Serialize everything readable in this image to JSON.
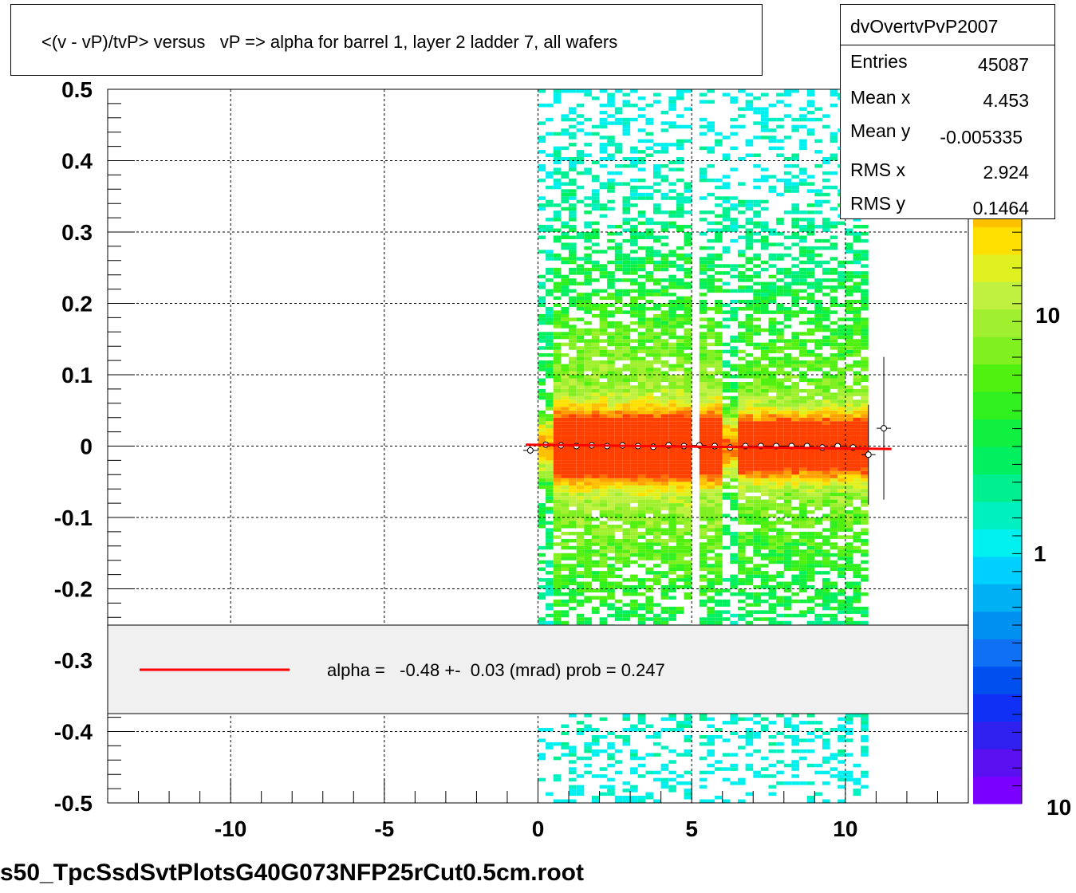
{
  "title": "<(v - vP)/tvP> versus   vP => alpha for barrel 1, layer 2 ladder 7, all wafers",
  "stats": {
    "name": "dvOvertvPvP2007",
    "rows": [
      {
        "label": "Entries",
        "value": "45087"
      },
      {
        "label": "Mean x",
        "value": "4.453"
      },
      {
        "label": "Mean y",
        "value": "-0.005335"
      },
      {
        "label": "RMS x",
        "value": "2.924"
      },
      {
        "label": "RMS y",
        "value": "0.1464"
      }
    ]
  },
  "legend": {
    "text": "alpha =   -0.48 +-  0.03 (mrad) prob = 0.247",
    "line_color": "#ff0000"
  },
  "palette": {
    "labels": [
      "10",
      "1",
      "10"
    ],
    "colors": [
      "#7a00ff",
      "#5a10f0",
      "#3020f0",
      "#1030f5",
      "#0050f0",
      "#1070f5",
      "#0090f0",
      "#00b0f5",
      "#00d0ff",
      "#00f0f0",
      "#00f0c0",
      "#00f090",
      "#00f060",
      "#10f040",
      "#30f020",
      "#50f010",
      "#80f020",
      "#a0f030",
      "#c0f040",
      "#e0f020",
      "#ffe000",
      "#ffc000",
      "#ffa000",
      "#ff7000",
      "#ff4000",
      "#ff0000"
    ]
  },
  "chart_data": {
    "type": "heatmap",
    "xlim": [
      -14,
      14
    ],
    "ylim": [
      -0.5,
      0.5
    ],
    "x_ticks": [
      -10,
      -5,
      0,
      5,
      10
    ],
    "x_tick_labels": [
      "-10",
      "-5",
      "0",
      "5",
      "10"
    ],
    "y_ticks": [
      -0.5,
      -0.4,
      -0.3,
      -0.2,
      -0.1,
      0,
      0.1,
      0.2,
      0.3,
      0.4,
      0.5
    ],
    "y_tick_labels": [
      "-0.5",
      "-0.4",
      "-0.3",
      "-0.2",
      "-0.1",
      "0",
      "0.1",
      "0.2",
      "0.3",
      "0.4",
      "0.5"
    ],
    "grid": true,
    "occupied_x_range": [
      0,
      11
    ],
    "peak_y": 0,
    "profile_points": [
      {
        "x": -0.25,
        "y": -0.006,
        "err": 0.005
      },
      {
        "x": 0.25,
        "y": 0.002,
        "err": 0.004
      },
      {
        "x": 0.75,
        "y": 0.001,
        "err": 0.003
      },
      {
        "x": 1.25,
        "y": 0.0,
        "err": 0.003
      },
      {
        "x": 1.75,
        "y": 0.001,
        "err": 0.003
      },
      {
        "x": 2.25,
        "y": 0.0,
        "err": 0.003
      },
      {
        "x": 2.75,
        "y": 0.001,
        "err": 0.003
      },
      {
        "x": 3.25,
        "y": 0.0,
        "err": 0.003
      },
      {
        "x": 3.75,
        "y": -0.001,
        "err": 0.003
      },
      {
        "x": 4.25,
        "y": 0.001,
        "err": 0.003
      },
      {
        "x": 4.75,
        "y": 0.0,
        "err": 0.003
      },
      {
        "x": 5.25,
        "y": 0.001,
        "err": 0.003
      },
      {
        "x": 5.75,
        "y": 0.0,
        "err": 0.003
      },
      {
        "x": 6.25,
        "y": -0.002,
        "err": 0.004
      },
      {
        "x": 6.75,
        "y": 0.0,
        "err": 0.003
      },
      {
        "x": 7.25,
        "y": 0.0,
        "err": 0.003
      },
      {
        "x": 7.75,
        "y": 0.0,
        "err": 0.003
      },
      {
        "x": 8.25,
        "y": 0.0,
        "err": 0.003
      },
      {
        "x": 8.75,
        "y": 0.0,
        "err": 0.003
      },
      {
        "x": 9.25,
        "y": -0.002,
        "err": 0.003
      },
      {
        "x": 9.75,
        "y": 0.0,
        "err": 0.003
      },
      {
        "x": 10.25,
        "y": -0.002,
        "err": 0.004
      },
      {
        "x": 10.75,
        "y": -0.012,
        "err": 0.07
      },
      {
        "x": 11.25,
        "y": 0.025,
        "err": 0.1
      }
    ],
    "fit_line": {
      "x": [
        -0.4,
        11.5
      ],
      "y": [
        0.002,
        -0.004
      ],
      "color": "#ff0000"
    }
  },
  "footer": "s50_TpcSsdSvtPlotsG40G073NFP25rCut0.5cm.root"
}
